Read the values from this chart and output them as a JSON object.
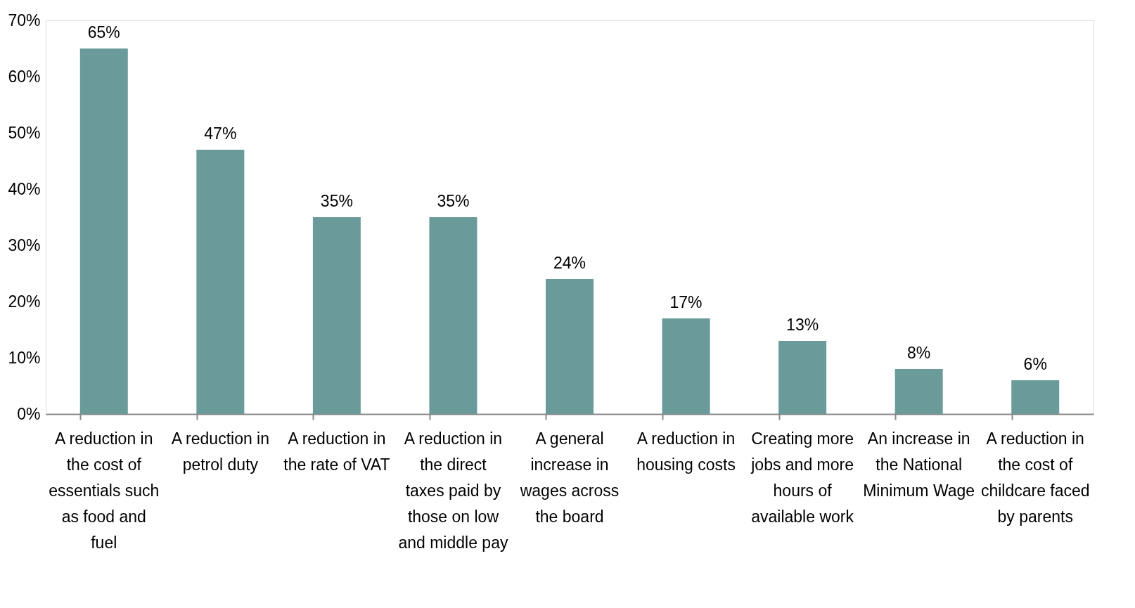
{
  "chart_data": {
    "type": "bar",
    "categories": [
      "A reduction in the cost of essentials such as food and fuel",
      "A reduction in petrol duty",
      "A reduction in the rate of VAT",
      "A reduction in the direct taxes paid by those on low and middle pay",
      "A general increase in wages across the board",
      "A reduction in housing costs",
      "Creating more jobs and more hours of available work",
      "An increase in the National Minimum Wage",
      "A reduction in the cost of childcare faced by parents"
    ],
    "values": [
      65,
      47,
      35,
      35,
      24,
      17,
      13,
      8,
      6
    ],
    "value_labels": [
      "65%",
      "47%",
      "35%",
      "35%",
      "24%",
      "17%",
      "13%",
      "8%",
      "6%"
    ],
    "color": "#6a9a9a",
    "ylim": [
      0,
      70
    ],
    "yticks": [
      {
        "value": 0,
        "label": "0%"
      },
      {
        "value": 10,
        "label": "10%"
      },
      {
        "value": 20,
        "label": "20%"
      },
      {
        "value": 30,
        "label": "30%"
      },
      {
        "value": 40,
        "label": "40%"
      },
      {
        "value": 50,
        "label": "50%"
      },
      {
        "value": 60,
        "label": "60%"
      },
      {
        "value": 70,
        "label": "70%"
      }
    ],
    "grid": false
  }
}
